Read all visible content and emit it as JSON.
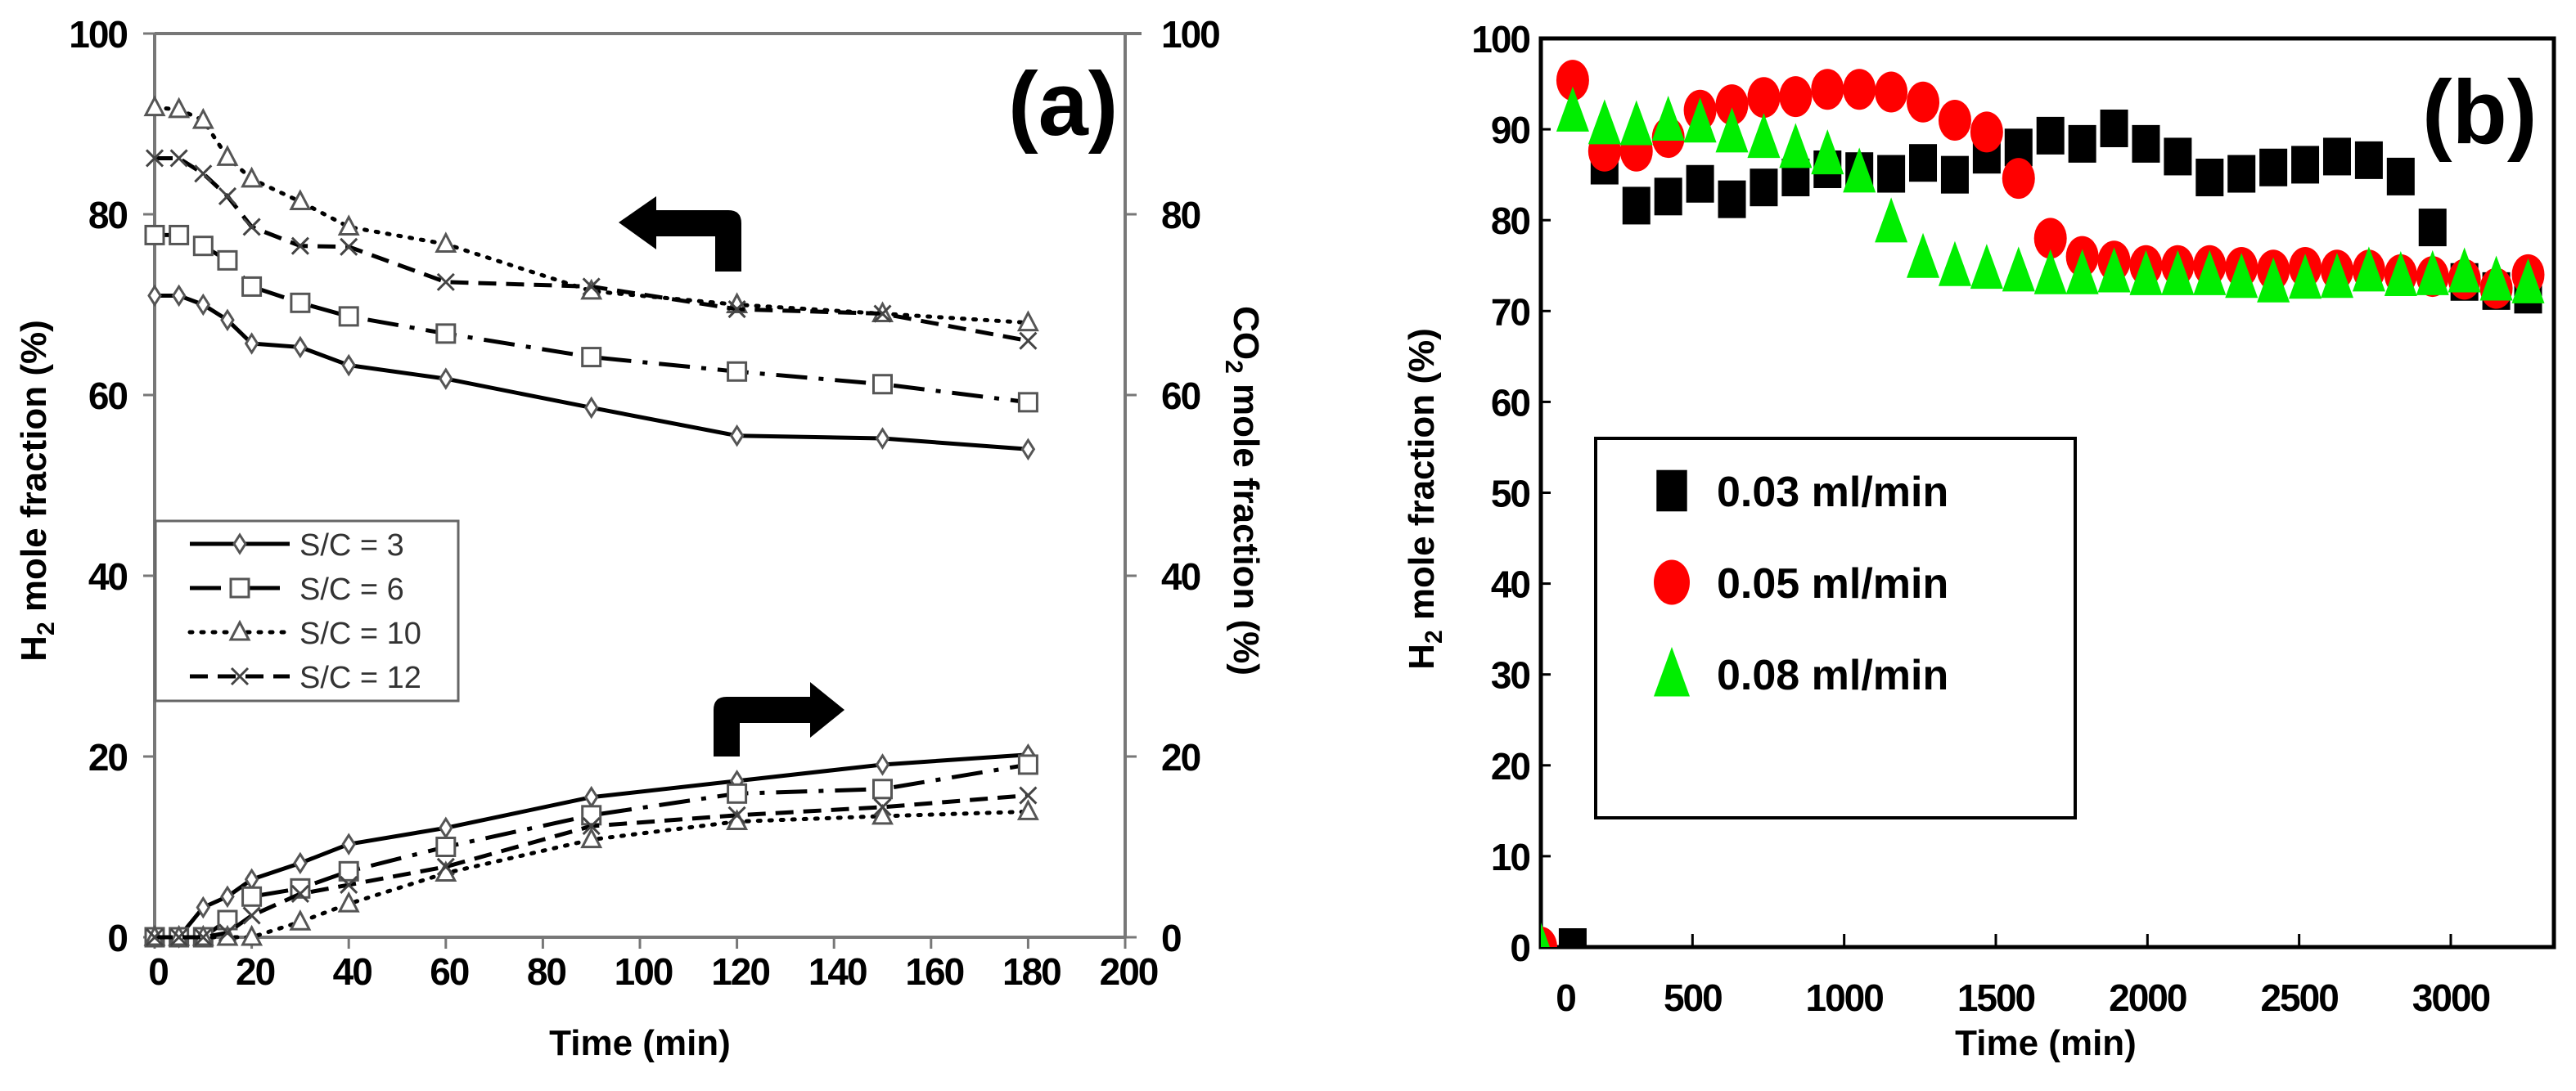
{
  "chart_data": [
    {
      "panel_label": "(a)",
      "type": "line",
      "xlabel": "Time (min)",
      "ylabel": {
        "main": "H",
        "sub": "2",
        "rest": " mole fraction (%)"
      },
      "y2label": {
        "main": "CO",
        "sub": "2",
        "rest": " mole fraction (%)"
      },
      "xlim": [
        0,
        200
      ],
      "ylim": [
        0,
        100
      ],
      "y2lim": [
        0,
        100
      ],
      "xticks": [
        0,
        20,
        40,
        60,
        80,
        100,
        120,
        140,
        160,
        180,
        200
      ],
      "yticks": [
        0,
        20,
        40,
        60,
        80,
        100
      ],
      "y2ticks": [
        0,
        20,
        40,
        60,
        80,
        100
      ],
      "grid": false,
      "legend_placement": "center-left",
      "annotations": [
        "left arrow pointing to H2 axis (upper curves)",
        "right arrow pointing to CO2 axis (lower curves)"
      ],
      "x": [
        0,
        5,
        10,
        15,
        20,
        30,
        40,
        60,
        90,
        120,
        150,
        180
      ],
      "series": [
        {
          "name": "S/C = 3",
          "marker": "diamond",
          "line": "solid",
          "h2": [
            71,
            71,
            70,
            68.3,
            65.7,
            65.3,
            63.3,
            61.8,
            58.6,
            55.5,
            55.2,
            54
          ],
          "co2": [
            0,
            0,
            3.3,
            4.5,
            6.4,
            8.2,
            10.3,
            12.1,
            15.5,
            17.3,
            19.1,
            20.2
          ]
        },
        {
          "name": "S/C = 6",
          "marker": "square",
          "line": "dash-dot",
          "h2": [
            77.7,
            77.7,
            76.5,
            74.9,
            72,
            70.2,
            68.7,
            66.8,
            64.2,
            62.6,
            61.2,
            59.2
          ],
          "co2": [
            0,
            0,
            0,
            1.9,
            4.5,
            5.4,
            7.3,
            10,
            13.5,
            15.9,
            16.4,
            19.1
          ]
        },
        {
          "name": "S/C = 10",
          "marker": "triangle",
          "line": "dotted",
          "h2": [
            91.8,
            91.6,
            90.4,
            86.3,
            83.9,
            81.4,
            78.6,
            76.7,
            71.5,
            70,
            69,
            68
          ],
          "co2": [
            0,
            0,
            0,
            0,
            0,
            1.7,
            3.7,
            7.1,
            10.8,
            12.8,
            13.4,
            13.9
          ]
        },
        {
          "name": "S/C = 12",
          "marker": "x",
          "line": "dashed",
          "h2": [
            86.2,
            86.2,
            84.5,
            82,
            78.6,
            76.5,
            76.4,
            72.5,
            72,
            69.5,
            69,
            66
          ],
          "co2": [
            0,
            0,
            0,
            0.5,
            2.4,
            4.8,
            5.8,
            7.8,
            12.3,
            13.5,
            14.4,
            15.7
          ]
        }
      ]
    },
    {
      "panel_label": "(b)",
      "type": "scatter",
      "xlabel": "Time (min)",
      "ylabel": {
        "main": "H",
        "sub": "2",
        "rest": " mole fraction (%)"
      },
      "xlim": [
        0,
        3340
      ],
      "ylim": [
        0,
        100
      ],
      "xticks": [
        0,
        500,
        1000,
        1500,
        2000,
        2500,
        3000
      ],
      "yticks": [
        0,
        10,
        20,
        30,
        40,
        50,
        60,
        70,
        80,
        90,
        100
      ],
      "grid": false,
      "legend_placement": "center-left",
      "series": [
        {
          "name": "0.03 ml/min",
          "marker": "square",
          "color": "#000000",
          "x": [
            105,
            210,
            315,
            420,
            525,
            630,
            735,
            840,
            945,
            1050,
            1155,
            1260,
            1365,
            1470,
            1575,
            1680,
            1785,
            1890,
            1995,
            2100,
            2205,
            2310,
            2415,
            2520,
            2625,
            2730,
            2835,
            2940,
            3045,
            3150,
            3255
          ],
          "y": [
            0,
            86,
            81.6,
            82.6,
            84,
            82.3,
            83.6,
            84.7,
            85.6,
            85.4,
            85.1,
            86.3,
            85,
            87.2,
            88,
            89.3,
            88.4,
            90.1,
            88.4,
            87,
            84.7,
            85.1,
            85.8,
            86.1,
            87,
            86.6,
            84.8,
            79.2,
            73.2,
            72.2,
            71.8
          ]
        },
        {
          "name": "0.05 ml/min",
          "marker": "circle",
          "color": "#ff0000",
          "x": [
            0,
            105,
            210,
            315,
            420,
            525,
            630,
            735,
            840,
            945,
            1050,
            1155,
            1260,
            1365,
            1470,
            1575,
            1680,
            1785,
            1890,
            1995,
            2100,
            2205,
            2310,
            2415,
            2520,
            2625,
            2730,
            2835,
            2940,
            3045,
            3150,
            3255
          ],
          "y": [
            0,
            95.4,
            87.6,
            87.6,
            89.1,
            92.1,
            92.7,
            93.5,
            93.6,
            94.4,
            94.4,
            94.1,
            93,
            91,
            89.7,
            84.6,
            78,
            76,
            75.5,
            75,
            75,
            75,
            74.8,
            74.5,
            74.8,
            74.5,
            74.5,
            74,
            73.8,
            73.5,
            72.5,
            74
          ]
        },
        {
          "name": "0.08 ml/min",
          "marker": "triangle",
          "color": "#00ee00",
          "x": [
            0,
            105,
            210,
            315,
            420,
            525,
            630,
            735,
            840,
            945,
            1050,
            1155,
            1260,
            1365,
            1470,
            1575,
            1680,
            1785,
            1890,
            1995,
            2100,
            2205,
            2310,
            2415,
            2520,
            2625,
            2730,
            2835,
            2940,
            3045,
            3150,
            3255
          ],
          "y": [
            0,
            92,
            90.6,
            90.5,
            91,
            90.8,
            89.7,
            89.1,
            88,
            87.3,
            85.3,
            79.8,
            75.9,
            75,
            74.7,
            74.4,
            74.1,
            74.1,
            74.3,
            74,
            74,
            74,
            73.7,
            73.2,
            73.6,
            73.7,
            74.4,
            73.9,
            74,
            74.3,
            73.4,
            73.1
          ]
        }
      ]
    }
  ]
}
